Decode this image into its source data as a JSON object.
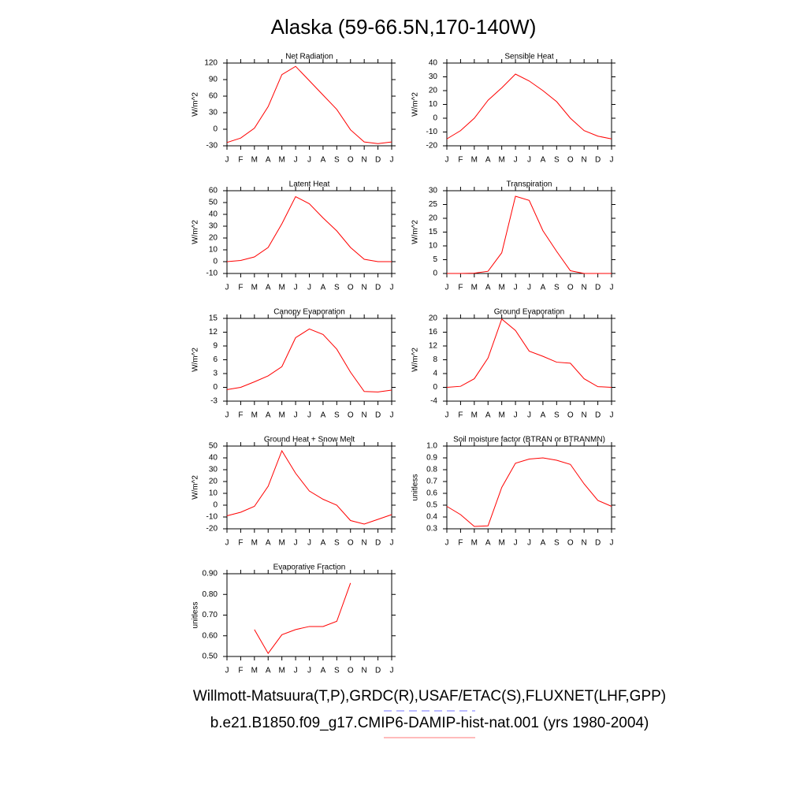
{
  "title": "Alaska (59-66.5N,170-140W)",
  "legend": [
    {
      "name": "Willmott-Matsuura(T,P),GRDC(R),USAF/ETAC(S),FLUXNET(LHF,GPP)",
      "color": "#7777ff",
      "dash": true
    },
    {
      "name": "b.e21.B1850.f09_g17.CMIP6-DAMIP-hist-nat.001 (yrs 1980-2004)",
      "color": "#ff7777",
      "dash": false
    }
  ],
  "chart_data": [
    {
      "type": "line",
      "title": "Net Radiation",
      "ylabel": "W/m^2",
      "categories": [
        "J",
        "F",
        "M",
        "A",
        "M",
        "J",
        "J",
        "A",
        "S",
        "O",
        "N",
        "D",
        "J"
      ],
      "ylim": [
        -30,
        120
      ],
      "yticks": [
        -30,
        0,
        30,
        60,
        90,
        120
      ],
      "series": [
        {
          "color": "red",
          "values": [
            -24,
            -16,
            2,
            41,
            99,
            114,
            88,
            62,
            36,
            -1,
            -23,
            -26,
            -23
          ]
        }
      ]
    },
    {
      "type": "line",
      "title": "Sensible Heat",
      "ylabel": "W/m^2",
      "categories": [
        "J",
        "F",
        "M",
        "A",
        "M",
        "J",
        "J",
        "A",
        "S",
        "O",
        "N",
        "D",
        "J"
      ],
      "ylim": [
        -20,
        40
      ],
      "yticks": [
        -20,
        -10,
        0,
        10,
        20,
        30,
        40
      ],
      "series": [
        {
          "color": "red",
          "values": [
            -15,
            -9,
            0,
            13,
            22,
            32,
            27,
            20,
            12,
            0,
            -9,
            -13,
            -15
          ]
        }
      ]
    },
    {
      "type": "line",
      "title": "Latent Heat",
      "ylabel": "W/m^2",
      "categories": [
        "J",
        "F",
        "M",
        "A",
        "M",
        "J",
        "J",
        "A",
        "S",
        "O",
        "N",
        "D",
        "J"
      ],
      "ylim": [
        -10,
        60
      ],
      "yticks": [
        -10,
        0,
        10,
        20,
        30,
        40,
        50,
        60
      ],
      "series": [
        {
          "color": "red",
          "values": [
            0,
            1,
            4,
            12,
            32,
            55,
            49,
            37,
            26,
            12,
            2,
            0,
            0
          ]
        }
      ]
    },
    {
      "type": "line",
      "title": "Transpiration",
      "ylabel": "W/m^2",
      "categories": [
        "J",
        "F",
        "M",
        "A",
        "M",
        "J",
        "J",
        "A",
        "S",
        "O",
        "N",
        "D",
        "J"
      ],
      "ylim": [
        0,
        30
      ],
      "yticks": [
        0,
        5,
        10,
        15,
        20,
        25,
        30
      ],
      "series": [
        {
          "color": "red",
          "values": [
            0,
            0,
            0.1,
            0.8,
            7.5,
            28,
            26.5,
            15.5,
            8,
            1,
            0,
            0,
            0
          ]
        }
      ]
    },
    {
      "type": "line",
      "title": "Canopy Evaporation",
      "ylabel": "W/m^2",
      "categories": [
        "J",
        "F",
        "M",
        "A",
        "M",
        "J",
        "J",
        "A",
        "S",
        "O",
        "N",
        "D",
        "J"
      ],
      "ylim": [
        -3,
        15
      ],
      "yticks": [
        -3,
        0,
        3,
        6,
        9,
        12,
        15
      ],
      "series": [
        {
          "color": "red",
          "values": [
            -0.5,
            0,
            1.2,
            2.5,
            4.5,
            10.8,
            12.7,
            11.5,
            8.3,
            3.3,
            -0.9,
            -1,
            -0.6
          ]
        }
      ]
    },
    {
      "type": "line",
      "title": "Ground Evaporation",
      "ylabel": "W/m^2",
      "categories": [
        "J",
        "F",
        "M",
        "A",
        "M",
        "J",
        "J",
        "A",
        "S",
        "O",
        "N",
        "D",
        "J"
      ],
      "ylim": [
        -4,
        20
      ],
      "yticks": [
        -4,
        0,
        4,
        8,
        12,
        16,
        20
      ],
      "series": [
        {
          "color": "red",
          "values": [
            0,
            0.3,
            2.5,
            8.5,
            19.8,
            16.5,
            10.5,
            9,
            7.3,
            7,
            2.5,
            0.2,
            0
          ]
        }
      ]
    },
    {
      "type": "line",
      "title": "Ground Heat + Snow Melt",
      "ylabel": "W/m^2",
      "categories": [
        "J",
        "F",
        "M",
        "A",
        "M",
        "J",
        "J",
        "A",
        "S",
        "O",
        "N",
        "D",
        "J"
      ],
      "ylim": [
        -20,
        50
      ],
      "yticks": [
        -20,
        -10,
        0,
        10,
        20,
        30,
        40,
        50
      ],
      "series": [
        {
          "color": "red",
          "values": [
            -9,
            -6,
            -1,
            16,
            46,
            27,
            12,
            5,
            0,
            -13,
            -16,
            -12,
            -8
          ]
        }
      ]
    },
    {
      "type": "line",
      "title": "Soil moisture factor (BTRAN or BTRANMN)",
      "ylabel": "unitless",
      "categories": [
        "J",
        "F",
        "M",
        "A",
        "M",
        "J",
        "J",
        "A",
        "S",
        "O",
        "N",
        "D",
        "J"
      ],
      "ylim": [
        0.3,
        1.0
      ],
      "yticks": [
        0.3,
        0.4,
        0.5,
        0.6,
        0.7,
        0.8,
        0.9,
        {
          "value": 1,
          "label": "1.0"
        }
      ],
      "series": [
        {
          "color": "red",
          "values": [
            0.49,
            0.42,
            0.32,
            0.325,
            0.65,
            0.855,
            0.89,
            0.9,
            0.88,
            0.845,
            0.68,
            0.54,
            0.49
          ]
        }
      ]
    },
    {
      "type": "line",
      "title": "Evaporative Fraction",
      "ylabel": "unitless",
      "categories": [
        "J",
        "F",
        "M",
        "A",
        "M",
        "J",
        "J",
        "A",
        "S",
        "O",
        "N",
        "D",
        "J"
      ],
      "ylim": [
        0.5,
        0.9
      ],
      "yticks": [
        {
          "value": 0.5,
          "label": "0.50"
        },
        {
          "value": 0.6,
          "label": "0.60"
        },
        {
          "value": 0.7,
          "label": "0.70"
        },
        {
          "value": 0.8,
          "label": "0.80"
        },
        {
          "value": 0.9,
          "label": "0.90"
        }
      ],
      "series": [
        {
          "color": "red",
          "values": [
            null,
            null,
            0.63,
            0.515,
            0.605,
            0.63,
            0.645,
            0.645,
            0.67,
            0.855,
            null,
            null,
            null
          ]
        }
      ]
    }
  ]
}
